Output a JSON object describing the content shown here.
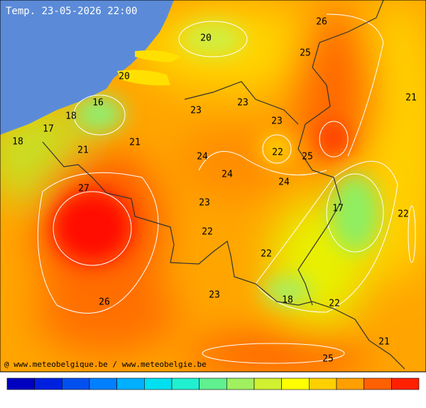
{
  "header": {
    "title": "Temp. 23-05-2026 22:00"
  },
  "map": {
    "labels": [
      26,
      20,
      25,
      20,
      21,
      16,
      23,
      23,
      18,
      23,
      17,
      18,
      21,
      21,
      22,
      24,
      25,
      24,
      24,
      27,
      23,
      17,
      22,
      22,
      22,
      23,
      18,
      26,
      22,
      21,
      25
    ]
  },
  "footer": {
    "credit": "@ www.meteobelgique.be / www.meteobelgie.be"
  }
}
